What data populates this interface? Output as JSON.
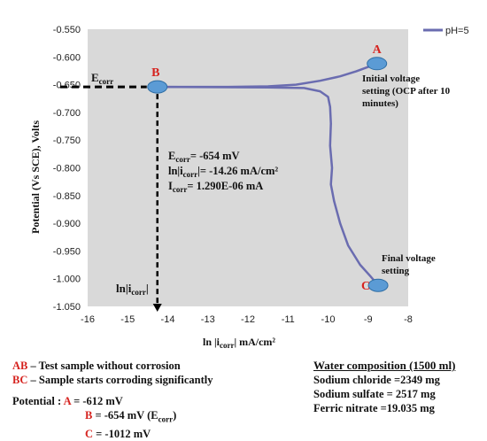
{
  "chart_data": {
    "type": "line",
    "title": "",
    "xlabel": "ln |i",
    "xlabel_sub": "corr",
    "xlabel_tail": "| mA/cm²",
    "ylabel": "Potential (Vs SCE), Volts",
    "xlim": [
      -16,
      -8
    ],
    "ylim": [
      -1.05,
      -0.55
    ],
    "x_ticks": [
      "-16",
      "-15",
      "-14",
      "-13",
      "-12",
      "-11",
      "-10",
      "-9",
      "-8"
    ],
    "y_ticks": [
      "-0.550",
      "-0.600",
      "-0.650",
      "-0.700",
      "-0.750",
      "-0.800",
      "-0.850",
      "-0.900",
      "-0.950",
      "-1.000",
      "-1.050"
    ],
    "grid": false,
    "legend_position": "top-right",
    "plot_bg": "#d9d9d9",
    "series": [
      {
        "name": "pH=5",
        "color": "#6a6cb0",
        "points": [
          [
            -14.26,
            -0.654
          ],
          [
            -13.5,
            -0.654
          ],
          [
            -12.5,
            -0.654
          ],
          [
            -11.5,
            -0.653
          ],
          [
            -10.8,
            -0.65
          ],
          [
            -10.2,
            -0.643
          ],
          [
            -9.7,
            -0.635
          ],
          [
            -9.3,
            -0.626
          ],
          [
            -9.0,
            -0.618
          ],
          [
            -8.78,
            -0.612
          ]
        ]
      },
      {
        "name": "",
        "color": "#6a6cb0",
        "points": [
          [
            -14.26,
            -0.654
          ],
          [
            -11.5,
            -0.655
          ],
          [
            -10.6,
            -0.656
          ],
          [
            -10.2,
            -0.662
          ],
          [
            -10.0,
            -0.672
          ],
          [
            -9.95,
            -0.69
          ],
          [
            -9.93,
            -0.72
          ],
          [
            -9.95,
            -0.76
          ],
          [
            -9.9,
            -0.8
          ],
          [
            -9.93,
            -0.83
          ],
          [
            -9.85,
            -0.86
          ],
          [
            -9.7,
            -0.9
          ],
          [
            -9.5,
            -0.94
          ],
          [
            -9.2,
            -0.975
          ],
          [
            -8.95,
            -0.995
          ],
          [
            -8.75,
            -1.012
          ]
        ]
      }
    ],
    "markers": [
      {
        "label": "A",
        "x": -8.78,
        "y": -0.612
      },
      {
        "label": "B",
        "x": -14.26,
        "y": -0.654
      },
      {
        "label": "C",
        "x": -8.75,
        "y": -1.012
      }
    ],
    "annotations": {
      "initial_voltage": [
        "Initial voltage",
        "setting (OCP after 10",
        "minutes)"
      ],
      "final_voltage": [
        "Final voltage",
        "setting"
      ],
      "ecorr_axis": {
        "main": "E",
        "sub": "corr"
      },
      "icorr_axis": {
        "main": "ln|i",
        "sub": "corr",
        "tail": "|"
      },
      "ecorr_value": {
        "main": "E",
        "sub": "corr",
        "tail": "= -654 mV"
      },
      "ln_icorr_value": {
        "main": "ln|i",
        "sub": "corr",
        "tail": "|= -14.26 mA/cm²"
      },
      "icorr_value": {
        "main": "I",
        "sub": "corr",
        "tail": "=  1.290E-06 mA"
      }
    }
  },
  "notes": {
    "ab": {
      "key": "AB",
      "text": " – Test sample without corrosion"
    },
    "bc": {
      "key": "BC",
      "text": " – Sample starts corroding significantly"
    },
    "potential_label": "Potential : ",
    "potentials": [
      {
        "key": "A",
        "text": " = -612 mV"
      },
      {
        "key": "B",
        "text": " = -654 mV (E",
        "sub": "corr",
        "tail": ")"
      },
      {
        "key": "C",
        "text": " = -1012 mV"
      }
    ]
  },
  "water": {
    "title": "Water composition (1500 ml)",
    "items": [
      "Sodium chloride =2349 mg",
      "Sodium sulfate = 2517 mg",
      "Ferric nitrate =19.035 mg"
    ]
  }
}
